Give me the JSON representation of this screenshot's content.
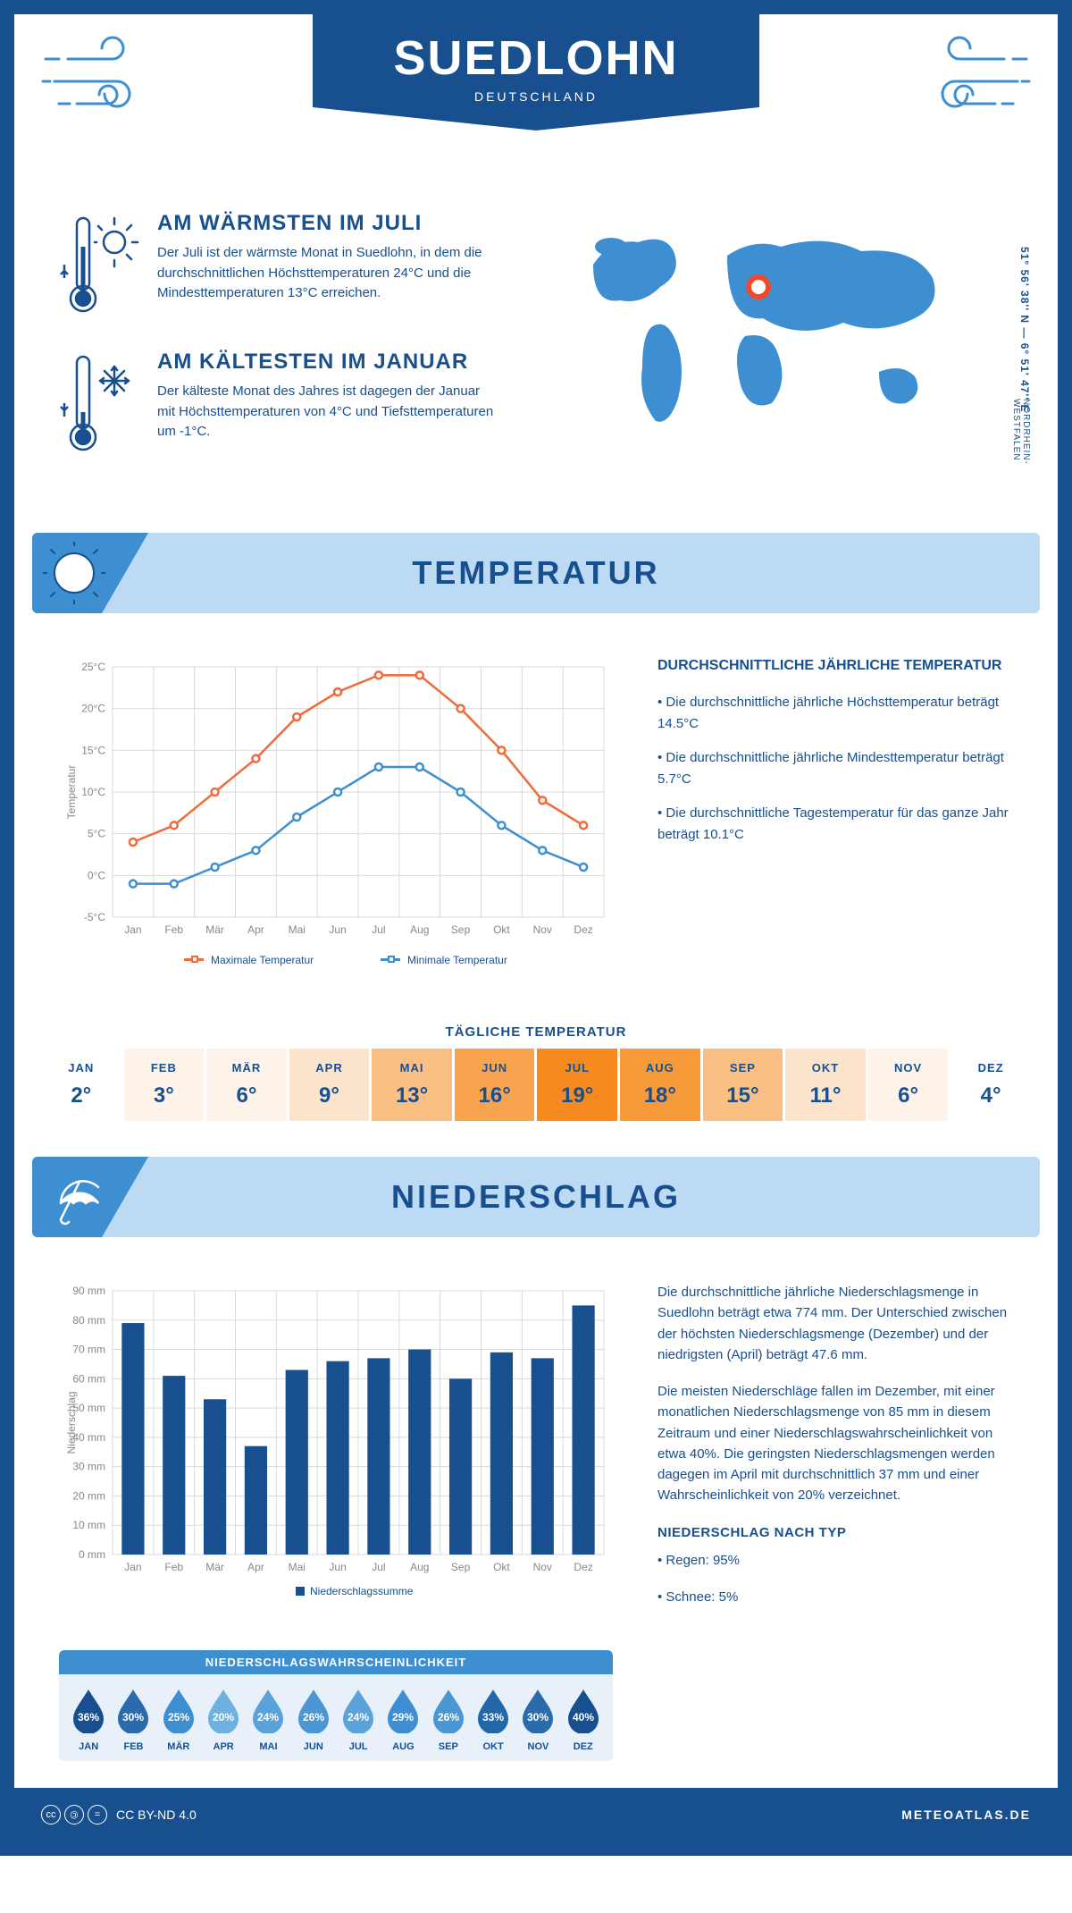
{
  "header": {
    "title": "SUEDLOHN",
    "country": "DEUTSCHLAND",
    "coords": "51° 56' 38'' N — 6° 51' 47'' E",
    "region": "NORDRHEIN-WESTFALEN"
  },
  "intro": {
    "warm": {
      "title": "AM WÄRMSTEN IM JULI",
      "text": "Der Juli ist der wärmste Monat in Suedlohn, in dem die durchschnittlichen Höchsttemperaturen 24°C und die Mindesttemperaturen 13°C erreichen."
    },
    "cold": {
      "title": "AM KÄLTESTEN IM JANUAR",
      "text": "Der kälteste Monat des Jahres ist dagegen der Januar mit Höchsttemperaturen von 4°C und Tiefsttemperaturen um -1°C."
    }
  },
  "sections": {
    "temp": "TEMPERATUR",
    "precip": "NIEDERSCHLAG"
  },
  "temp_chart": {
    "months": [
      "Jan",
      "Feb",
      "Mär",
      "Apr",
      "Mai",
      "Jun",
      "Jul",
      "Aug",
      "Sep",
      "Okt",
      "Nov",
      "Dez"
    ],
    "max": [
      4,
      6,
      10,
      14,
      19,
      22,
      24,
      24,
      20,
      15,
      9,
      6
    ],
    "min": [
      -1,
      -1,
      1,
      3,
      7,
      10,
      13,
      13,
      10,
      6,
      3,
      1
    ],
    "ymin": -5,
    "ymax": 25,
    "ystep": 5,
    "max_color": "#f06a3a",
    "min_color": "#3d8fd1",
    "grid_color": "#d9d9d9",
    "legend_max": "Maximale Temperatur",
    "legend_min": "Minimale Temperatur",
    "ylabel": "Temperatur"
  },
  "temp_text": {
    "title": "DURCHSCHNITTLICHE JÄHRLICHE TEMPERATUR",
    "b1": "• Die durchschnittliche jährliche Höchsttemperatur beträgt 14.5°C",
    "b2": "• Die durchschnittliche jährliche Mindesttemperatur beträgt 5.7°C",
    "b3": "• Die durchschnittliche Tagestemperatur für das ganze Jahr beträgt 10.1°C"
  },
  "daily": {
    "title": "TÄGLICHE TEMPERATUR",
    "months": [
      "JAN",
      "FEB",
      "MÄR",
      "APR",
      "MAI",
      "JUN",
      "JUL",
      "AUG",
      "SEP",
      "OKT",
      "NOV",
      "DEZ"
    ],
    "values": [
      "2°",
      "3°",
      "6°",
      "9°",
      "13°",
      "16°",
      "19°",
      "18°",
      "15°",
      "11°",
      "6°",
      "4°"
    ],
    "colors": [
      "#ffffff",
      "#fdf3e8",
      "#fdf3e8",
      "#fce3cb",
      "#fabf82",
      "#f8a44e",
      "#f68a1e",
      "#f79a3a",
      "#fabf82",
      "#fce3cb",
      "#fdf3e8",
      "#ffffff"
    ]
  },
  "precip_chart": {
    "months": [
      "Jan",
      "Feb",
      "Mär",
      "Apr",
      "Mai",
      "Jun",
      "Jul",
      "Aug",
      "Sep",
      "Okt",
      "Nov",
      "Dez"
    ],
    "values": [
      79,
      61,
      53,
      37,
      63,
      66,
      67,
      70,
      60,
      69,
      67,
      85
    ],
    "ymin": 0,
    "ymax": 90,
    "ystep": 10,
    "bar_color": "#174f8f",
    "grid_color": "#d9d9d9",
    "legend": "Niederschlagssumme",
    "ylabel": "Niederschlag"
  },
  "precip_text": {
    "p1": "Die durchschnittliche jährliche Niederschlagsmenge in Suedlohn beträgt etwa 774 mm. Der Unterschied zwischen der höchsten Niederschlagsmenge (Dezember) und der niedrigsten (April) beträgt 47.6 mm.",
    "p2": "Die meisten Niederschläge fallen im Dezember, mit einer monatlichen Niederschlagsmenge von 85 mm in diesem Zeitraum und einer Niederschlagswahrscheinlichkeit von etwa 40%. Die geringsten Niederschlagsmengen werden dagegen im April mit durchschnittlich 37 mm und einer Wahrscheinlichkeit von 20% verzeichnet.",
    "type_title": "NIEDERSCHLAG NACH TYP",
    "rain": "• Regen: 95%",
    "snow": "• Schnee: 5%"
  },
  "drops": {
    "title": "NIEDERSCHLAGSWAHRSCHEINLICHKEIT",
    "months": [
      "JAN",
      "FEB",
      "MÄR",
      "APR",
      "MAI",
      "JUN",
      "JUL",
      "AUG",
      "SEP",
      "OKT",
      "NOV",
      "DEZ"
    ],
    "pct": [
      "36%",
      "30%",
      "25%",
      "20%",
      "24%",
      "26%",
      "24%",
      "29%",
      "26%",
      "33%",
      "30%",
      "40%"
    ],
    "colors": [
      "#174f8f",
      "#2b6bab",
      "#3d8fd1",
      "#6eb0e0",
      "#5aa3da",
      "#4a97d4",
      "#5aa3da",
      "#3d8fd1",
      "#4a97d4",
      "#2268a9",
      "#2b6bab",
      "#174f8f"
    ]
  },
  "footer": {
    "license": "CC BY-ND 4.0",
    "brand": "METEOATLAS.DE"
  }
}
